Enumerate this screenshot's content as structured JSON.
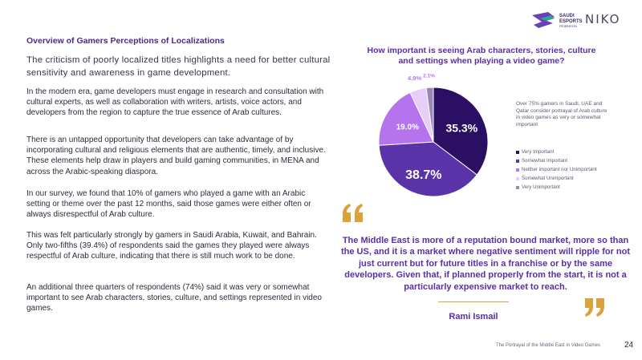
{
  "header": {
    "logo_saudi_line1": "SAUDI",
    "logo_saudi_line2": "ESPORTS",
    "logo_saudi_line3": "FEDERATION",
    "logo_niko": "NIKO"
  },
  "left": {
    "heading": "Overview of Gamers Perceptions of Localizations",
    "lead": "The criticism of poorly localized titles highlights a need for better cultural sensitivity and awareness in game development.",
    "paragraphs": [
      "In the modern era, game developers must engage in research and consultation with cultural experts, as well as collaboration with writers, artists, voice actors, and developers from the region to capture the true essence of Arab cultures.",
      "There is an untapped opportunity that developers can take advantage of by incorporating cultural and religious elements that are authentic, timely, and inclusive. These elements help draw in players and build gaming communities, in MENA and across the Arabic-speaking diaspora.",
      "In our survey, we found that 10% of gamers who played a game with an Arabic setting or theme over the past 12 months, said those games were either often or always disrespectful of Arab culture.",
      "This was felt particularly strongly by gamers in Saudi Arabia, Kuwait, and Bahrain. Only two-fifths (39.4%) of respondents said the games they played were always respectful of Arab culture, indicating that there is still much work to be done.",
      "An additional three quarters of respondents (74%) said it was very or somewhat important to see Arab characters, stories, culture, and settings represented in video games."
    ]
  },
  "chart_data": {
    "type": "pie",
    "title": "How important is seeing Arab characters, stories, culture and settings when playing a video game?",
    "categories": [
      "Very Important",
      "Somewhat Important",
      "Neither important nor Unimportant",
      "Somewhat Unimportant",
      "Very Unimportant"
    ],
    "values": [
      35.3,
      38.7,
      19.0,
      4.9,
      2.1
    ],
    "labels": [
      "35.3%",
      "38.7%",
      "19.0%",
      "4.9%",
      "2.1%"
    ],
    "colors": [
      "#2a0f63",
      "#5b33a8",
      "#b574ee",
      "#e7cdfa",
      "#9a87b8"
    ],
    "note": "Over 75% gamers in Saudi, UAE and Qatar consider portrayal of Arab culture in video games as very or somewhat important",
    "legend_position": "right"
  },
  "quote": {
    "text": "The Middle East is more of a reputation bound market, more so than the US, and it is a market where negative sentiment will ripple for not just current but for future titles in a franchise or by the same developers. Given that, if planned properly from the start, it is not a particularly expensive market to reach.",
    "author": "Rami Ismail",
    "open_mark": "“",
    "close_mark": "”",
    "accent_color": "#d9a23a"
  },
  "footer": {
    "text": "The Portrayal of the Middle East in Video Games",
    "page_number": "24"
  }
}
